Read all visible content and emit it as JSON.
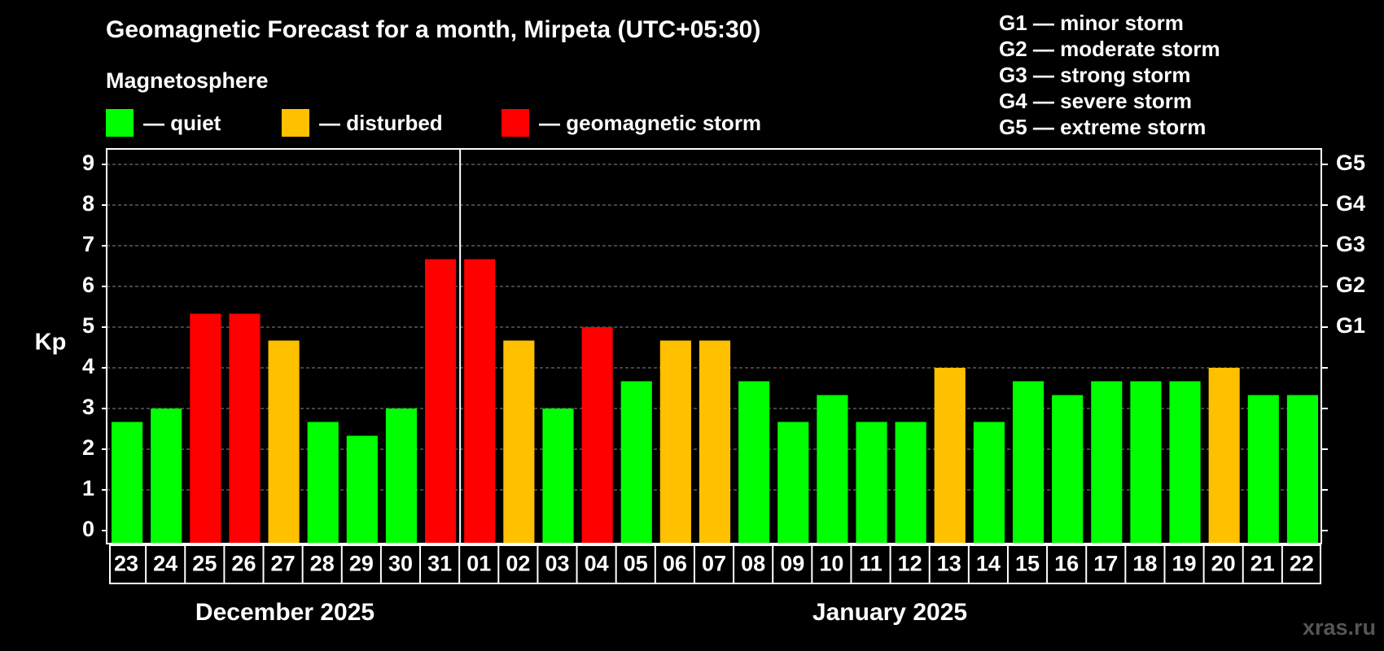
{
  "title": "Geomagnetic Forecast for a month, Mirpeta (UTC+05:30)",
  "subtitle": "Magnetosphere",
  "legend": [
    {
      "label": "— quiet",
      "color": "#00ff00"
    },
    {
      "label": "— disturbed",
      "color": "#ffc000"
    },
    {
      "label": "— geomagnetic storm",
      "color": "#ff0000"
    }
  ],
  "g_legend": [
    "G1 — minor storm",
    "G2 — moderate storm",
    "G3 — strong storm",
    "G4 — severe storm",
    "G5 — extreme storm"
  ],
  "months": [
    "December 2025",
    "January 2025"
  ],
  "watermark": "xras.ru",
  "chart_data": {
    "type": "bar",
    "ylabel": "Kp",
    "ylim": [
      0,
      9
    ],
    "yticks": [
      "0",
      "1",
      "2",
      "3",
      "4",
      "5",
      "6",
      "7",
      "8",
      "9"
    ],
    "right_axis_labels": [
      {
        "kp": 5,
        "label": "G1"
      },
      {
        "kp": 6,
        "label": "G2"
      },
      {
        "kp": 7,
        "label": "G3"
      },
      {
        "kp": 8,
        "label": "G4"
      },
      {
        "kp": 9,
        "label": "G5"
      }
    ],
    "grid": "dashed horizontal",
    "categories": [
      "23",
      "24",
      "25",
      "26",
      "27",
      "28",
      "29",
      "30",
      "31",
      "01",
      "02",
      "03",
      "04",
      "05",
      "06",
      "07",
      "08",
      "09",
      "10",
      "11",
      "12",
      "13",
      "14",
      "15",
      "16",
      "17",
      "18",
      "19",
      "20",
      "21",
      "22"
    ],
    "values": [
      2.67,
      3.0,
      5.33,
      5.33,
      4.67,
      2.67,
      2.33,
      3.0,
      6.67,
      6.67,
      4.67,
      3.0,
      5.0,
      3.67,
      4.67,
      4.67,
      3.67,
      2.67,
      3.33,
      2.67,
      2.67,
      4.0,
      2.67,
      3.67,
      3.33,
      3.67,
      3.67,
      3.67,
      4.0,
      3.33,
      3.33
    ],
    "status": [
      "quiet",
      "quiet",
      "storm",
      "storm",
      "disturbed",
      "quiet",
      "quiet",
      "quiet",
      "storm",
      "storm",
      "disturbed",
      "quiet",
      "storm",
      "quiet",
      "disturbed",
      "disturbed",
      "quiet",
      "quiet",
      "quiet",
      "quiet",
      "quiet",
      "disturbed",
      "quiet",
      "quiet",
      "quiet",
      "quiet",
      "quiet",
      "quiet",
      "disturbed",
      "quiet",
      "quiet"
    ],
    "colors": {
      "quiet": "#00ff00",
      "disturbed": "#ffc000",
      "storm": "#ff0000"
    }
  }
}
